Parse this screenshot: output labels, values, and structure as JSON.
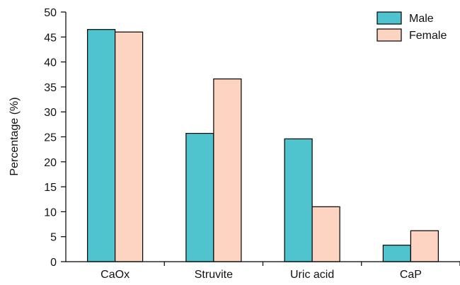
{
  "chart_data": {
    "type": "bar",
    "title": "",
    "xlabel": "",
    "ylabel": "Percentage (%)",
    "ylim": [
      0,
      50
    ],
    "yticks": [
      0,
      5,
      10,
      15,
      20,
      25,
      30,
      35,
      40,
      45,
      50
    ],
    "categories": [
      "CaOx",
      "Struvite",
      "Uric acid",
      "CaP"
    ],
    "series": [
      {
        "name": "Male",
        "color": "#4fc4cf",
        "values": [
          46.5,
          25.7,
          24.6,
          3.3
        ]
      },
      {
        "name": "Female",
        "color": "#fdd3c2",
        "values": [
          46.0,
          36.6,
          11.0,
          6.2
        ]
      }
    ],
    "legend": "top-right",
    "grid": false
  }
}
